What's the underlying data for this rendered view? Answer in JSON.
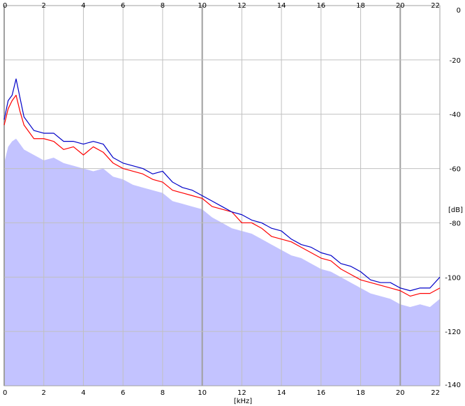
{
  "chart_data": {
    "type": "area",
    "xlabel": "[kHz]",
    "ylabel": "[dB]",
    "xlim": [
      0,
      22
    ],
    "ylim": [
      -140,
      0
    ],
    "x_ticks": [
      0,
      2,
      4,
      6,
      8,
      10,
      12,
      14,
      16,
      18,
      20,
      22
    ],
    "y_ticks": [
      0,
      -20,
      -40,
      -60,
      -80,
      -100,
      -120,
      -140
    ],
    "x_tick_labels": [
      "0",
      "2",
      "4",
      "6",
      "8",
      "10",
      "12",
      "14",
      "16",
      "18",
      "20",
      "22"
    ],
    "y_tick_labels": [
      "0",
      "-20",
      "-40",
      "-60",
      "-80",
      "-100",
      "-120",
      "-140"
    ],
    "x_axis_position": "top-and-bottom",
    "y_axis_position": "right",
    "grid": true,
    "colors": {
      "background": "#ffffff",
      "fill": "#c3c3ff",
      "grid_minor": "#c0c0c0",
      "grid_major": "#a0a0a0",
      "series_red": "#ff0000",
      "series_blue": "#0000c8"
    },
    "series": [
      {
        "color": "#c3c3ff",
        "style": "filled-area",
        "x": [
          0,
          0.2,
          0.4,
          0.6,
          0.8,
          1.0,
          1.5,
          2.0,
          2.5,
          3.0,
          3.5,
          4.0,
          4.5,
          5.0,
          5.5,
          6.0,
          6.5,
          7.0,
          7.5,
          8.0,
          8.5,
          9.0,
          9.5,
          10.0,
          10.5,
          11.0,
          11.5,
          12.0,
          12.5,
          13.0,
          13.5,
          14.0,
          14.5,
          15.0,
          15.5,
          16.0,
          16.5,
          17.0,
          17.5,
          18.0,
          18.5,
          19.0,
          19.5,
          20.0,
          20.5,
          21.0,
          21.5,
          22.0
        ],
        "values": [
          -58,
          -52,
          -50,
          -49,
          -51,
          -53,
          -55,
          -57,
          -56,
          -58,
          -59,
          -60,
          -61,
          -60,
          -63,
          -64,
          -66,
          -67,
          -68,
          -69,
          -72,
          -73,
          -74,
          -75,
          -78,
          -80,
          -82,
          -83,
          -84,
          -86,
          -88,
          -90,
          -92,
          -93,
          -95,
          -97,
          -98,
          -100,
          -102,
          -104,
          -106,
          -107,
          -108,
          -110,
          -111,
          -110,
          -111,
          -108
        ]
      },
      {
        "color": "#ff0000",
        "style": "line",
        "x": [
          0,
          0.2,
          0.4,
          0.6,
          0.8,
          1.0,
          1.5,
          2.0,
          2.5,
          3.0,
          3.5,
          4.0,
          4.5,
          5.0,
          5.5,
          6.0,
          6.5,
          7.0,
          7.5,
          8.0,
          8.5,
          9.0,
          9.5,
          10.0,
          10.5,
          11.0,
          11.5,
          12.0,
          12.5,
          13.0,
          13.5,
          14.0,
          14.5,
          15.0,
          15.5,
          16.0,
          16.5,
          17.0,
          17.5,
          18.0,
          18.5,
          19.0,
          19.5,
          20.0,
          20.5,
          21.0,
          21.5,
          22.0
        ],
        "values": [
          -44,
          -38,
          -35,
          -33,
          -39,
          -44,
          -49,
          -49,
          -50,
          -53,
          -52,
          -55,
          -52,
          -54,
          -58,
          -60,
          -61,
          -62,
          -64,
          -65,
          -68,
          -69,
          -70,
          -71,
          -74,
          -75,
          -76,
          -80,
          -80,
          -82,
          -85,
          -86,
          -87,
          -89,
          -91,
          -93,
          -94,
          -97,
          -99,
          -101,
          -102,
          -103,
          -104,
          -105,
          -107,
          -106,
          -106,
          -104
        ]
      },
      {
        "color": "#0000c8",
        "style": "line",
        "x": [
          0,
          0.2,
          0.4,
          0.6,
          0.8,
          1.0,
          1.5,
          2.0,
          2.5,
          3.0,
          3.5,
          4.0,
          4.5,
          5.0,
          5.5,
          6.0,
          6.5,
          7.0,
          7.5,
          8.0,
          8.5,
          9.0,
          9.5,
          10.0,
          10.5,
          11.0,
          11.5,
          12.0,
          12.5,
          13.0,
          13.5,
          14.0,
          14.5,
          15.0,
          15.5,
          16.0,
          16.5,
          17.0,
          17.5,
          18.0,
          18.5,
          19.0,
          19.5,
          20.0,
          20.5,
          21.0,
          21.5,
          22.0
        ],
        "values": [
          -42,
          -35,
          -33,
          -27,
          -34,
          -41,
          -46,
          -47,
          -47,
          -50,
          -50,
          -51,
          -50,
          -51,
          -56,
          -58,
          -59,
          -60,
          -62,
          -61,
          -65,
          -67,
          -68,
          -70,
          -72,
          -74,
          -76,
          -77,
          -79,
          -80,
          -82,
          -83,
          -86,
          -88,
          -89,
          -91,
          -92,
          -95,
          -96,
          -98,
          -101,
          -102,
          -102,
          -104,
          -105,
          -104,
          -104,
          -100
        ]
      }
    ]
  }
}
